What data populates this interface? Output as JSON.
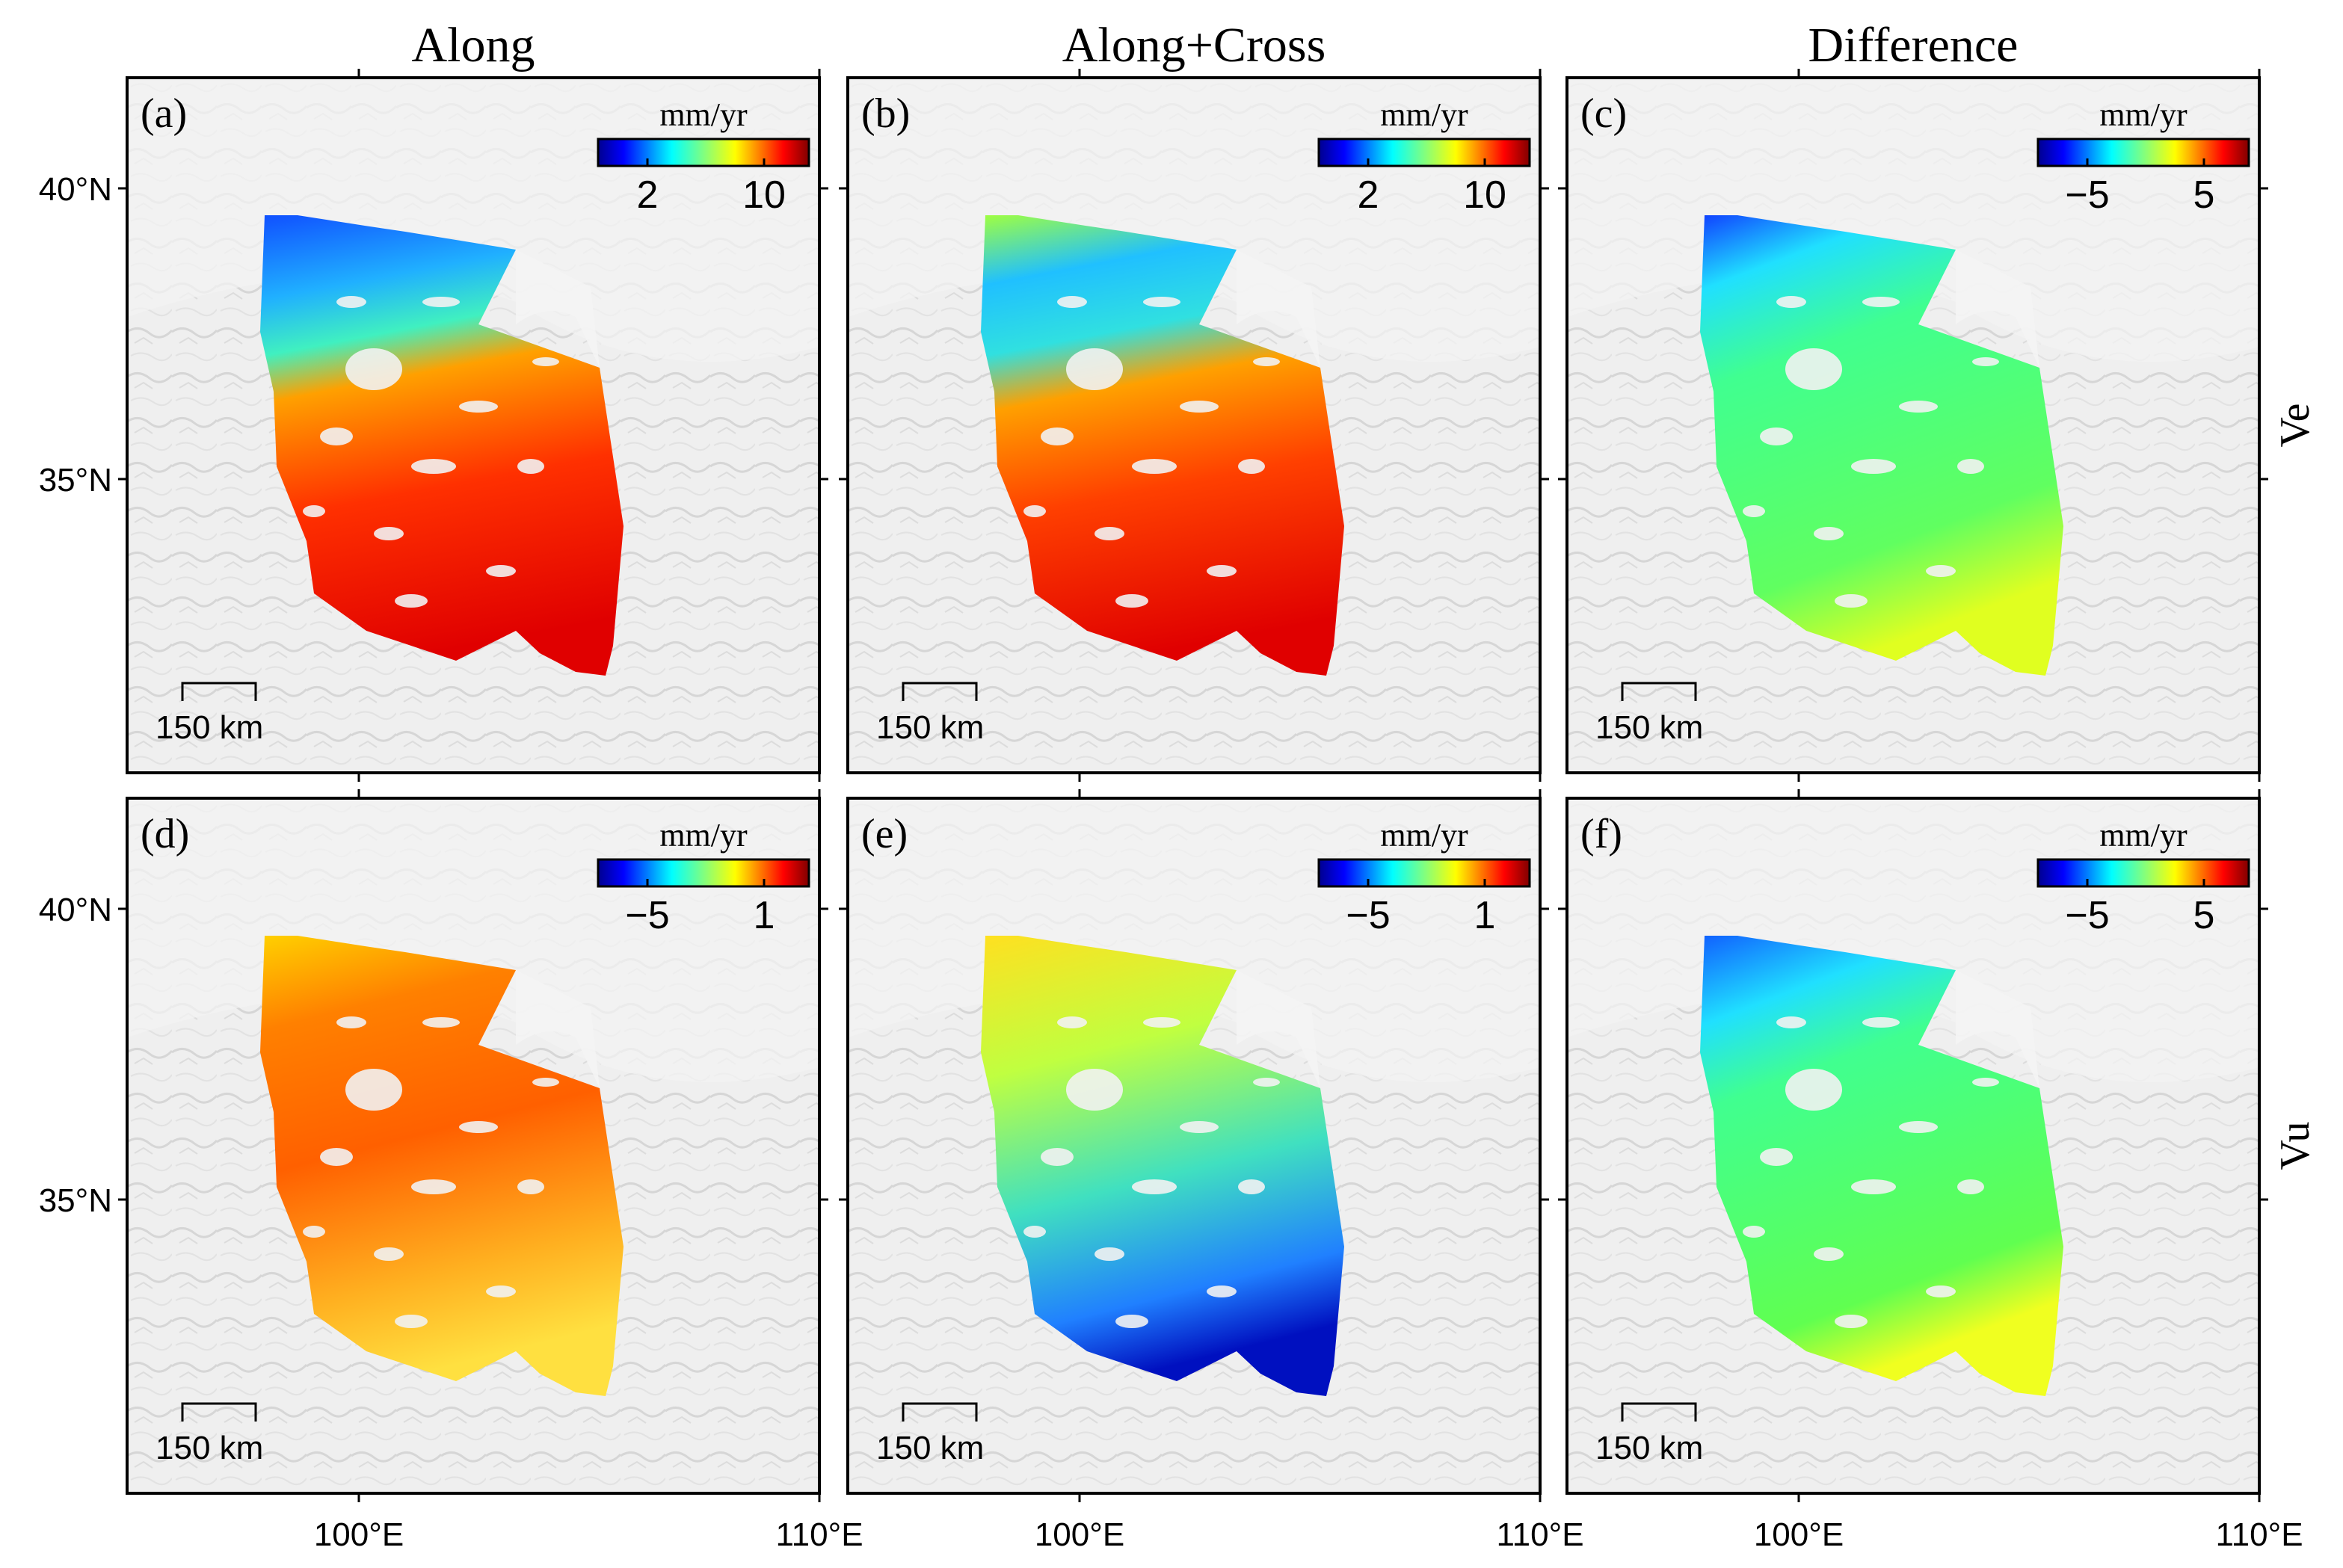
{
  "figure": {
    "columns": [
      {
        "title": "Along"
      },
      {
        "title": "Along+Cross"
      },
      {
        "title": "Difference"
      }
    ],
    "rows": [
      {
        "label": "Ve"
      },
      {
        "label": "Vu"
      }
    ],
    "latitude_ticks": [
      "40°N",
      "35°N"
    ],
    "longitude_ticks": [
      "100°E",
      "110°E"
    ],
    "panels": [
      {
        "label": "(a)",
        "unit": "mm/yr",
        "ticks": [
          "2",
          "10"
        ],
        "scale": "150 km",
        "style": "a"
      },
      {
        "label": "(b)",
        "unit": "mm/yr",
        "ticks": [
          "2",
          "10"
        ],
        "scale": "150 km",
        "style": "b"
      },
      {
        "label": "(c)",
        "unit": "mm/yr",
        "ticks": [
          "−5",
          "5"
        ],
        "scale": "150 km",
        "style": "c"
      },
      {
        "label": "(d)",
        "unit": "mm/yr",
        "ticks": [
          "−5",
          "1"
        ],
        "scale": "150 km",
        "style": "d"
      },
      {
        "label": "(e)",
        "unit": "mm/yr",
        "ticks": [
          "−5",
          "1"
        ],
        "scale": "150 km",
        "style": "e"
      },
      {
        "label": "(f)",
        "unit": "mm/yr",
        "ticks": [
          "−5",
          "5"
        ],
        "scale": "150 km",
        "style": "f"
      }
    ],
    "colors": {
      "jet": [
        "#00008f",
        "#0000ff",
        "#0080ff",
        "#00ffff",
        "#80ff80",
        "#ffff00",
        "#ff8000",
        "#ff0000",
        "#800000"
      ],
      "basemap": "#eeeeee"
    }
  }
}
